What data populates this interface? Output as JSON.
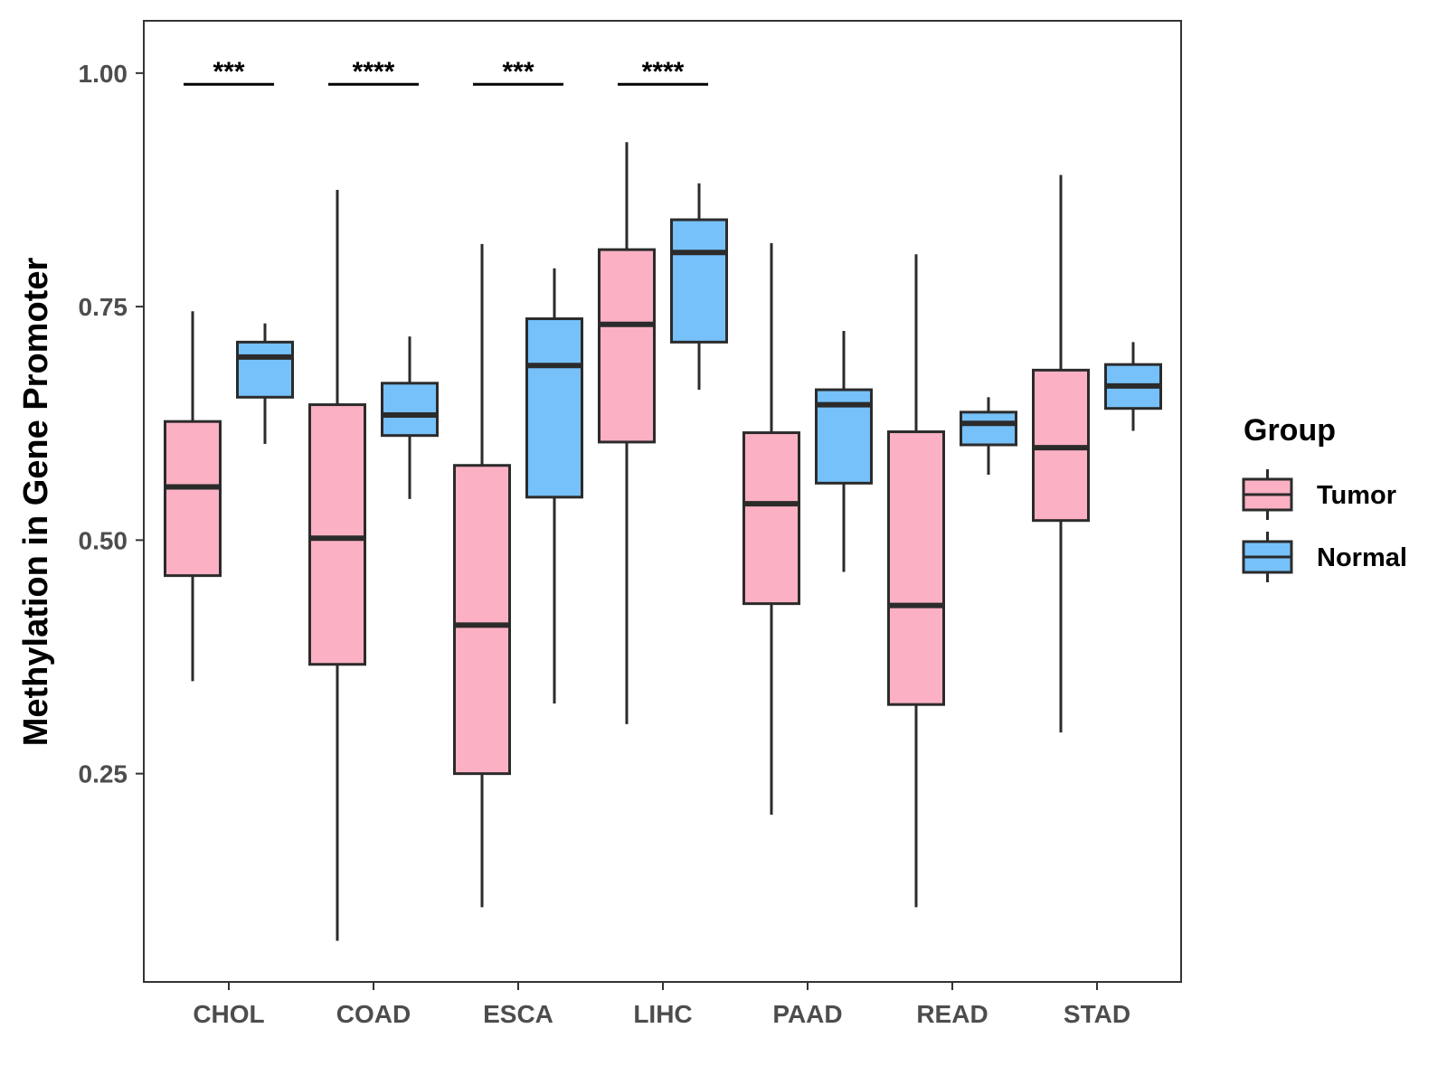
{
  "chart_data": {
    "type": "boxplot",
    "title": "",
    "xlabel": "",
    "ylabel": "Methylation in Gene Promoter",
    "ylim": [
      0.027,
      1.056
    ],
    "yticks": [
      0.25,
      0.5,
      0.75,
      1.0
    ],
    "ytick_labels": [
      "0.25",
      "0.50",
      "0.75",
      "1.00"
    ],
    "categories": [
      "CHOL",
      "COAD",
      "ESCA",
      "LIHC",
      "PAAD",
      "READ",
      "STAD"
    ],
    "legend": {
      "title": "Group",
      "placement": "right",
      "entries": [
        {
          "name": "Tumor",
          "color": "#FBB1C3"
        },
        {
          "name": "Normal",
          "color": "#76C1FA"
        }
      ]
    },
    "series": [
      {
        "name": "Tumor",
        "color": "#FBB1C3",
        "boxes": [
          {
            "min": 0.349,
            "q1": 0.462,
            "median": 0.557,
            "q3": 0.627,
            "max": 0.745
          },
          {
            "min": 0.071,
            "q1": 0.367,
            "median": 0.502,
            "q3": 0.645,
            "max": 0.875
          },
          {
            "min": 0.107,
            "q1": 0.25,
            "median": 0.409,
            "q3": 0.58,
            "max": 0.817
          },
          {
            "min": 0.303,
            "q1": 0.605,
            "median": 0.731,
            "q3": 0.811,
            "max": 0.926
          },
          {
            "min": 0.206,
            "q1": 0.432,
            "median": 0.539,
            "q3": 0.615,
            "max": 0.818
          },
          {
            "min": 0.107,
            "q1": 0.324,
            "median": 0.43,
            "q3": 0.616,
            "max": 0.806
          },
          {
            "min": 0.294,
            "q1": 0.521,
            "median": 0.599,
            "q3": 0.682,
            "max": 0.891
          }
        ]
      },
      {
        "name": "Normal",
        "color": "#76C1FA",
        "boxes": [
          {
            "min": 0.603,
            "q1": 0.653,
            "median": 0.696,
            "q3": 0.712,
            "max": 0.732
          },
          {
            "min": 0.544,
            "q1": 0.612,
            "median": 0.634,
            "q3": 0.668,
            "max": 0.718
          },
          {
            "min": 0.325,
            "q1": 0.546,
            "median": 0.687,
            "q3": 0.737,
            "max": 0.791
          },
          {
            "min": 0.661,
            "q1": 0.712,
            "median": 0.808,
            "q3": 0.843,
            "max": 0.882
          },
          {
            "min": 0.466,
            "q1": 0.561,
            "median": 0.645,
            "q3": 0.661,
            "max": 0.724
          },
          {
            "min": 0.57,
            "q1": 0.602,
            "median": 0.625,
            "q3": 0.637,
            "max": 0.653
          },
          {
            "min": 0.617,
            "q1": 0.641,
            "median": 0.665,
            "q3": 0.688,
            "max": 0.712
          }
        ]
      }
    ],
    "significance": [
      {
        "category": "CHOL",
        "label": "***",
        "y": 0.988
      },
      {
        "category": "COAD",
        "label": "****",
        "y": 0.988
      },
      {
        "category": "ESCA",
        "label": "***",
        "y": 0.988
      },
      {
        "category": "LIHC",
        "label": "****",
        "y": 0.988
      }
    ]
  }
}
